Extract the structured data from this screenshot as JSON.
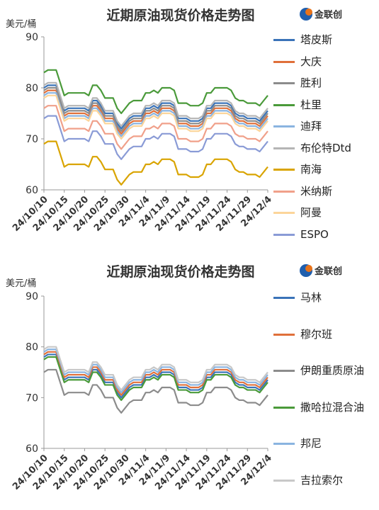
{
  "chart_data": [
    {
      "type": "line",
      "title": "近期原油现货价格走势图",
      "ylabel": "美元/桶",
      "logo_text": "金联创",
      "categories": [
        "24/10/10",
        null,
        null,
        null,
        null,
        "24/10/15",
        null,
        null,
        null,
        null,
        "24/10/20",
        null,
        null,
        null,
        null,
        "24/10/25",
        null,
        null,
        null,
        null,
        "24/10/30",
        null,
        null,
        null,
        null,
        "24/11/4",
        null,
        null,
        null,
        null,
        "24/11/9",
        null,
        null,
        null,
        null,
        "24/11/14",
        null,
        null,
        null,
        null,
        "24/11/19",
        null,
        null,
        null,
        null,
        "24/11/24",
        null,
        null,
        null,
        null,
        "24/11/29",
        null,
        null,
        null,
        null,
        "24/12/4"
      ],
      "ylim": [
        60,
        90
      ],
      "yticks": [
        60,
        70,
        80,
        90
      ],
      "grid": false,
      "series": [
        {
          "name": "塔皮斯",
          "color": "#3a73b8",
          "values": [
            80,
            80.5,
            80.5,
            80.5,
            78,
            75.5,
            76,
            76,
            76,
            76,
            76,
            75.5,
            77.5,
            77.5,
            76.5,
            75,
            75,
            75,
            73,
            72,
            73,
            74,
            74.5,
            74.5,
            74.5,
            76,
            76,
            76.5,
            76,
            77,
            77,
            77,
            76.5,
            74,
            74,
            74,
            73.5,
            73.5,
            73.5,
            74,
            76,
            76,
            77,
            77,
            77,
            77,
            76.5,
            75,
            74.5,
            74.5,
            74,
            74,
            74,
            73.5,
            74.5,
            75.5
          ]
        },
        {
          "name": "大庆",
          "color": "#e0703a",
          "values": [
            79,
            79.5,
            79.5,
            79.5,
            77,
            74.5,
            75,
            75,
            75,
            75,
            75,
            74.5,
            76.5,
            76.5,
            75.5,
            74,
            74,
            74,
            72,
            71,
            72,
            73,
            73.5,
            73.5,
            73.5,
            75,
            75,
            75.5,
            75,
            76,
            76,
            76,
            75.5,
            73,
            73,
            73,
            72.5,
            72.5,
            72.5,
            73,
            75,
            75,
            76,
            76,
            76,
            76,
            75.5,
            74,
            73.5,
            73.5,
            73,
            73,
            73,
            72.5,
            73.5,
            74.5
          ]
        },
        {
          "name": "胜利",
          "color": "#8c8c8c",
          "values": [
            79.5,
            80,
            80,
            80,
            77.5,
            75,
            75.5,
            75.5,
            75.5,
            75.5,
            75.5,
            75,
            77,
            77,
            76,
            74.5,
            74.5,
            74.5,
            72.5,
            71.5,
            72.5,
            73.5,
            74,
            74,
            74,
            75.5,
            75.5,
            76,
            75.5,
            76.5,
            76.5,
            76.5,
            76,
            73.5,
            73.5,
            73.5,
            73,
            73,
            73,
            73.5,
            75.5,
            75.5,
            76.5,
            76.5,
            76.5,
            76.5,
            76,
            74.5,
            74,
            74,
            73.5,
            73.5,
            73.5,
            73,
            74,
            75
          ]
        },
        {
          "name": "杜里",
          "color": "#4a9a3a",
          "values": [
            83,
            83.5,
            83.5,
            83.5,
            81,
            78.5,
            79,
            79,
            79,
            79,
            79,
            78.5,
            80.5,
            80.5,
            79.5,
            78,
            78,
            78,
            76,
            75,
            76,
            77,
            77.5,
            77.5,
            77.5,
            79,
            79,
            79.5,
            79,
            80,
            80,
            80,
            79.5,
            77,
            77,
            77,
            76.5,
            76.5,
            76.5,
            77,
            79,
            79,
            80,
            80,
            80,
            80,
            79.5,
            78,
            77.5,
            77.5,
            77,
            77,
            77,
            76.5,
            77.5,
            78.5
          ]
        },
        {
          "name": "迪拜",
          "color": "#8ab4e0",
          "values": [
            78.5,
            79,
            79,
            79,
            76.5,
            74,
            74.5,
            74.5,
            74.5,
            74.5,
            74.5,
            74,
            76,
            76,
            75,
            73.5,
            73.5,
            73.5,
            71.5,
            70.5,
            71.5,
            72.5,
            73,
            73,
            73,
            74.5,
            74.5,
            75,
            74.5,
            75.5,
            75.5,
            75.5,
            75,
            72.5,
            72.5,
            72.5,
            72,
            72,
            72,
            72.5,
            74.5,
            74.5,
            75.5,
            75.5,
            75.5,
            75.5,
            75,
            73.5,
            73,
            73,
            72.5,
            72.5,
            72.5,
            72,
            73,
            74
          ]
        },
        {
          "name": "布伦特Dtd",
          "color": "#b5b5b5",
          "values": [
            80.5,
            81,
            81,
            81,
            78.5,
            76,
            76.5,
            76.5,
            76.5,
            76.5,
            76.5,
            76,
            78,
            78,
            77,
            75.5,
            75.5,
            75.5,
            73.5,
            72.5,
            73.5,
            74.5,
            75,
            75,
            75,
            76.5,
            76.5,
            77,
            76.5,
            77.5,
            77.5,
            77.5,
            77,
            74.5,
            74.5,
            74.5,
            74,
            74,
            74,
            74.5,
            76.5,
            76.5,
            77.5,
            77.5,
            77.5,
            77.5,
            77,
            75.5,
            75,
            75,
            74.5,
            74.5,
            74.5,
            74,
            75,
            76
          ]
        },
        {
          "name": "南海",
          "color": "#d9a400",
          "values": [
            69,
            69.5,
            69.5,
            69.5,
            67,
            64.5,
            65,
            65,
            65,
            65,
            65,
            64.5,
            66.5,
            66.5,
            65.5,
            64,
            64,
            64,
            62,
            61,
            62,
            63,
            63.5,
            63.5,
            63.5,
            65,
            65,
            65.5,
            65,
            66,
            66,
            66,
            65.5,
            63,
            63,
            63,
            62.5,
            62.5,
            62.5,
            63,
            65,
            65,
            66,
            66,
            66,
            66,
            65.5,
            64,
            63.5,
            63.5,
            63,
            63,
            63,
            62.5,
            63.5,
            64.5
          ]
        },
        {
          "name": "米纳斯",
          "color": "#f0a08a",
          "values": [
            76,
            76.5,
            76.5,
            76.5,
            74,
            71.5,
            72,
            72,
            72,
            72,
            72,
            71.5,
            73.5,
            73.5,
            72.5,
            71,
            71,
            71,
            69,
            68,
            69,
            70,
            70.5,
            70.5,
            70.5,
            72,
            72,
            72.5,
            72,
            73,
            73,
            73,
            72.5,
            70,
            70,
            70,
            69.5,
            69.5,
            69.5,
            70,
            72,
            72,
            73,
            73,
            73,
            73,
            72.5,
            71,
            70.5,
            70.5,
            70,
            70,
            70,
            69.5,
            70.5,
            71.5
          ]
        },
        {
          "name": "阿曼",
          "color": "#fcd59a",
          "values": [
            78,
            78.5,
            78.5,
            78.5,
            76,
            73.5,
            74,
            74,
            74,
            74,
            74,
            73.5,
            75.5,
            75.5,
            74.5,
            73,
            73,
            73,
            71,
            70,
            71,
            72,
            72.5,
            72.5,
            72.5,
            74,
            74,
            74.5,
            74,
            75,
            75,
            75,
            74.5,
            72,
            72,
            72,
            71.5,
            71.5,
            71.5,
            72,
            74,
            74,
            75,
            75,
            75,
            75,
            74.5,
            73,
            72.5,
            72.5,
            72,
            72,
            72,
            71.5,
            72.5,
            73.5
          ]
        },
        {
          "name": "ESPO",
          "color": "#8a9bd6",
          "values": [
            74,
            74.5,
            74.5,
            74.5,
            72,
            69.5,
            70,
            70,
            70,
            70,
            70,
            69.5,
            71.5,
            71.5,
            70.5,
            69,
            69,
            69,
            67,
            66,
            67,
            68,
            68.5,
            68.5,
            68.5,
            70,
            70,
            70.5,
            70,
            71,
            71,
            71,
            70.5,
            68,
            68,
            68,
            67.5,
            67.5,
            67.5,
            68,
            70,
            70,
            71,
            71,
            71,
            71,
            70.5,
            69,
            68.5,
            68.5,
            68,
            68,
            68,
            67.5,
            68.5,
            69.5
          ]
        }
      ]
    },
    {
      "type": "line",
      "title": "近期原油现货价格走势图",
      "ylabel": "美元/桶",
      "logo_text": "金联创",
      "categories": [
        "24/10/10",
        null,
        null,
        null,
        null,
        "24/10/15",
        null,
        null,
        null,
        null,
        "24/10/20",
        null,
        null,
        null,
        null,
        "24/10/25",
        null,
        null,
        null,
        null,
        "24/10/30",
        null,
        null,
        null,
        null,
        "24/11/4",
        null,
        null,
        null,
        null,
        "24/11/9",
        null,
        null,
        null,
        null,
        "24/11/14",
        null,
        null,
        null,
        null,
        "24/11/19",
        null,
        null,
        null,
        null,
        "24/11/24",
        null,
        null,
        null,
        null,
        "24/11/29",
        null,
        null,
        null,
        null,
        "24/12/4"
      ],
      "ylim": [
        60,
        90
      ],
      "yticks": [
        60,
        70,
        80,
        90
      ],
      "grid": false,
      "series": [
        {
          "name": "马林",
          "color": "#3a73b8",
          "values": [
            78,
            78.5,
            78.5,
            78.5,
            76,
            73.5,
            74,
            74,
            74,
            74,
            74,
            73.5,
            75.5,
            75.5,
            74.5,
            73,
            73,
            73,
            71,
            70,
            71,
            72,
            72.5,
            72.5,
            72.5,
            74,
            74,
            74.5,
            74,
            75,
            75,
            75,
            74.5,
            72,
            72,
            72,
            71.5,
            71.5,
            71.5,
            72,
            74,
            74,
            75,
            75,
            75,
            75,
            74.5,
            73,
            72.5,
            72.5,
            72,
            72,
            72,
            71.5,
            72.5,
            73.5
          ]
        },
        {
          "name": "穆尔班",
          "color": "#e0703a",
          "values": [
            78.5,
            79,
            79,
            79,
            76.5,
            74,
            74.5,
            74.5,
            74.5,
            74.5,
            74.5,
            74,
            76,
            76,
            75,
            73.5,
            73.5,
            73.5,
            71.5,
            70.5,
            71.5,
            72.5,
            73,
            73,
            73,
            74.5,
            74.5,
            75,
            74.5,
            75.5,
            75.5,
            75.5,
            75,
            72.5,
            72.5,
            72.5,
            72,
            72,
            72,
            72.5,
            74.5,
            74.5,
            75.5,
            75.5,
            75.5,
            75.5,
            75,
            73.5,
            73,
            73,
            72.5,
            72.5,
            72.5,
            72,
            73,
            74
          ]
        },
        {
          "name": "伊朗重质原油",
          "color": "#8c8c8c",
          "values": [
            75,
            75.5,
            75.5,
            75.5,
            73,
            70.5,
            71,
            71,
            71,
            71,
            71,
            70.5,
            72.5,
            72.5,
            71.5,
            70,
            70,
            70,
            68,
            67,
            68,
            69,
            69.5,
            69.5,
            69.5,
            71,
            71,
            71.5,
            71,
            72,
            72,
            72,
            71.5,
            69,
            69,
            69,
            68.5,
            68.5,
            68.5,
            69,
            71,
            71,
            72,
            72,
            72,
            72,
            71.5,
            70,
            69.5,
            69.5,
            69,
            69,
            69,
            68.5,
            69.5,
            70.5
          ]
        },
        {
          "name": "撒哈拉混合油",
          "color": "#4a9a3a",
          "values": [
            77.5,
            78,
            78,
            78,
            75.5,
            73,
            73.5,
            73.5,
            73.5,
            73.5,
            73.5,
            73,
            75,
            75,
            74,
            72.5,
            72.5,
            72.5,
            70.5,
            69.5,
            70.5,
            71.5,
            72,
            72,
            72,
            73.5,
            73.5,
            74,
            73.5,
            74.5,
            74.5,
            74.5,
            74,
            71.5,
            71.5,
            71.5,
            71,
            71,
            71,
            71.5,
            73.5,
            73.5,
            74.5,
            74.5,
            74.5,
            74.5,
            74,
            72.5,
            72,
            72,
            71.5,
            71.5,
            71.5,
            71,
            72,
            73
          ]
        },
        {
          "name": "邦尼",
          "color": "#8ab4e0",
          "values": [
            79,
            79.5,
            79.5,
            79.5,
            77,
            74.5,
            75,
            75,
            75,
            75,
            75,
            74.5,
            76.5,
            76.5,
            75.5,
            74,
            74,
            74,
            72,
            71,
            72,
            73,
            73.5,
            73.5,
            73.5,
            75,
            75,
            75.5,
            75,
            76,
            76,
            76,
            75.5,
            73,
            73,
            73,
            72.5,
            72.5,
            72.5,
            73,
            75,
            75,
            76,
            76,
            76,
            76,
            75.5,
            74,
            73.5,
            73.5,
            73,
            73,
            73,
            72.5,
            73.5,
            74.5
          ]
        },
        {
          "name": "吉拉索尔",
          "color": "#c8c8c8",
          "values": [
            79.5,
            80,
            80,
            80,
            77.5,
            75,
            75.5,
            75.5,
            75.5,
            75.5,
            75.5,
            75,
            77,
            77,
            76,
            74.5,
            74.5,
            74.5,
            72.5,
            71.5,
            72.5,
            73.5,
            74,
            74,
            74,
            75.5,
            75.5,
            76,
            75.5,
            76.5,
            76.5,
            76.5,
            76,
            73.5,
            73.5,
            73.5,
            73,
            73,
            73,
            73.5,
            75.5,
            75.5,
            76.5,
            76.5,
            76.5,
            76.5,
            76,
            74.5,
            74,
            74,
            73.5,
            73.5,
            73.5,
            73,
            74,
            75
          ]
        }
      ]
    }
  ]
}
